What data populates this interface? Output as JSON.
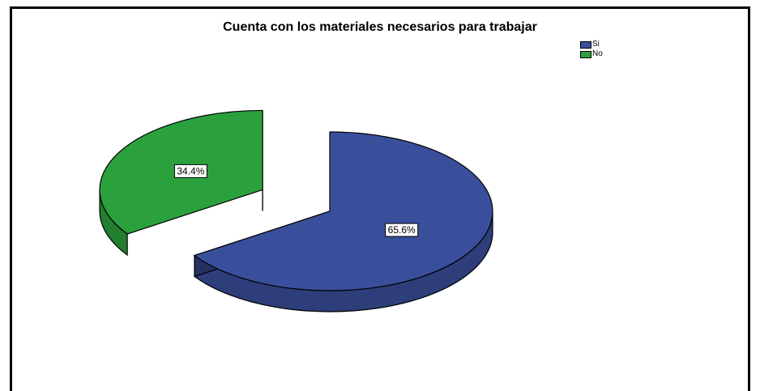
{
  "chart_data": {
    "type": "pie",
    "title": "Cuenta con los materiales necesarios para trabajar",
    "slices": [
      {
        "label": "Si",
        "value": 65.6,
        "data_label": "65.6%",
        "color": "#3a4f9c"
      },
      {
        "label": "No",
        "value": 34.4,
        "data_label": "34.4%",
        "color": "#2ba13d"
      }
    ],
    "legend_placement": "top-right",
    "exploded": "No",
    "style": "3d"
  }
}
